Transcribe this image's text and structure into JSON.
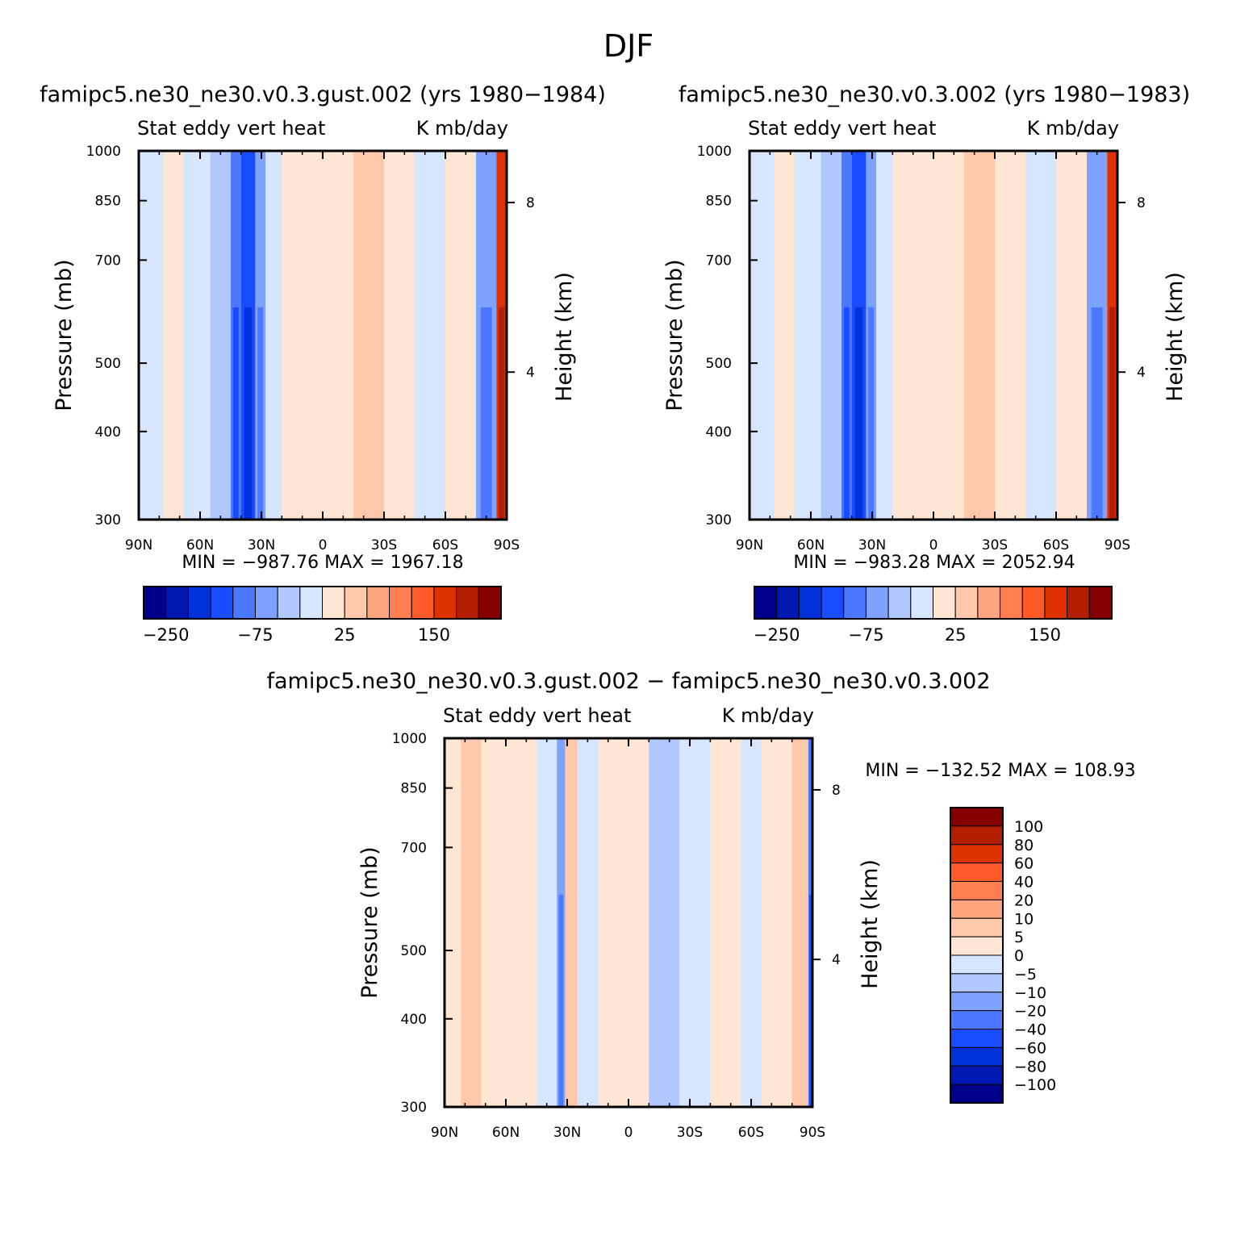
{
  "figure": {
    "title": "DJF"
  },
  "colors": {
    "abs": [
      "#00008b",
      "#0019b3",
      "#0032dc",
      "#1a4cff",
      "#4b78ff",
      "#80a2ff",
      "#b0c8ff",
      "#d6e6ff",
      "#ffe6d2",
      "#ffc8aa",
      "#ffa57d",
      "#ff7f50",
      "#ff5a28",
      "#e03200",
      "#b41e00",
      "#870000"
    ],
    "diff": [
      "#00008b",
      "#0019b3",
      "#0032dc",
      "#1a4cff",
      "#4b78ff",
      "#80a2ff",
      "#b0c8ff",
      "#d6e6ff",
      "#ffe6d2",
      "#ffc8aa",
      "#ffa57d",
      "#ff7f50",
      "#ff5a28",
      "#e03200",
      "#b41e00",
      "#870000"
    ]
  },
  "chart_data": [
    {
      "id": "panel-a",
      "type": "heatmap",
      "title": "famipc5.ne30_ne30.v0.3.gust.002 (yrs 1980−1984)",
      "left_label": "Stat eddy vert heat",
      "right_label": "K mb/day",
      "ylabel": "Pressure (mb)",
      "ylabel_right": "Height (km)",
      "x_ticks": [
        "90N",
        "60N",
        "30N",
        "0",
        "30S",
        "60S",
        "90S"
      ],
      "y_ticks": [
        "300",
        "400",
        "500",
        "700",
        "850",
        "1000"
      ],
      "y_ticks_right": [
        "8",
        "4"
      ],
      "ylim": [
        1000,
        300
      ],
      "min_max": "MIN = −987.76   MAX = 1967.18",
      "colorbar_labels": [
        "−250",
        "−75",
        "25",
        "150"
      ],
      "field": [
        {
          "lat": 90,
          "level": -1
        },
        {
          "lat": 78,
          "level": 1
        },
        {
          "lat": 68,
          "level": -1
        },
        {
          "lat": 55,
          "level": -2
        },
        {
          "lat": 45,
          "level": -4
        },
        {
          "lat": 40,
          "level": -5
        },
        {
          "lat": 33,
          "level": -3
        },
        {
          "lat": 28,
          "level": -1
        },
        {
          "lat": 20,
          "level": 1
        },
        {
          "lat": 5,
          "level": 1
        },
        {
          "lat": -15,
          "level": 2
        },
        {
          "lat": -30,
          "level": 1
        },
        {
          "lat": -45,
          "level": -1
        },
        {
          "lat": -60,
          "level": 1
        },
        {
          "lat": -75,
          "level": -3
        },
        {
          "lat": -85,
          "level": 6
        }
      ]
    },
    {
      "id": "panel-b",
      "type": "heatmap",
      "title": "famipc5.ne30_ne30.v0.3.002 (yrs 1980−1983)",
      "left_label": "Stat eddy vert heat",
      "right_label": "K mb/day",
      "ylabel": "Pressure (mb)",
      "ylabel_right": "Height (km)",
      "x_ticks": [
        "90N",
        "60N",
        "30N",
        "0",
        "30S",
        "60S",
        "90S"
      ],
      "y_ticks": [
        "300",
        "400",
        "500",
        "700",
        "850",
        "1000"
      ],
      "y_ticks_right": [
        "8",
        "4"
      ],
      "ylim": [
        1000,
        300
      ],
      "min_max": "MIN = −983.28   MAX = 2052.94",
      "colorbar_labels": [
        "−250",
        "−75",
        "25",
        "150"
      ],
      "field": [
        {
          "lat": 90,
          "level": -1
        },
        {
          "lat": 78,
          "level": 1
        },
        {
          "lat": 68,
          "level": -1
        },
        {
          "lat": 55,
          "level": -2
        },
        {
          "lat": 45,
          "level": -4
        },
        {
          "lat": 40,
          "level": -5
        },
        {
          "lat": 33,
          "level": -3
        },
        {
          "lat": 28,
          "level": -1
        },
        {
          "lat": 20,
          "level": 1
        },
        {
          "lat": 5,
          "level": 1
        },
        {
          "lat": -15,
          "level": 2
        },
        {
          "lat": -30,
          "level": 1
        },
        {
          "lat": -45,
          "level": -1
        },
        {
          "lat": -60,
          "level": 1
        },
        {
          "lat": -75,
          "level": -3
        },
        {
          "lat": -85,
          "level": 6
        }
      ]
    },
    {
      "id": "panel-c",
      "type": "heatmap",
      "title": "famipc5.ne30_ne30.v0.3.gust.002 − famipc5.ne30_ne30.v0.3.002",
      "left_label": "Stat eddy vert heat",
      "right_label": "K mb/day",
      "ylabel": "Pressure (mb)",
      "ylabel_right": "Height (km)",
      "x_ticks": [
        "90N",
        "60N",
        "30N",
        "0",
        "30S",
        "60S",
        "90S"
      ],
      "y_ticks": [
        "300",
        "400",
        "500",
        "700",
        "850",
        "1000"
      ],
      "y_ticks_right": [
        "8",
        "4"
      ],
      "ylim": [
        1000,
        300
      ],
      "min_max": "MIN = −132.52   MAX = 108.93",
      "colorbar_labels": [
        "100",
        "80",
        "60",
        "40",
        "20",
        "10",
        "5",
        "0",
        "−5",
        "−10",
        "−20",
        "−40",
        "−60",
        "−80",
        "−100"
      ],
      "field": [
        {
          "lat": 90,
          "level": 0
        },
        {
          "lat": 82,
          "level": 2
        },
        {
          "lat": 72,
          "level": 1
        },
        {
          "lat": 60,
          "level": 1
        },
        {
          "lat": 45,
          "level": -1
        },
        {
          "lat": 35,
          "level": -3
        },
        {
          "lat": 31,
          "level": 2
        },
        {
          "lat": 25,
          "level": -1
        },
        {
          "lat": 15,
          "level": 1
        },
        {
          "lat": 0,
          "level": 1
        },
        {
          "lat": -10,
          "level": -2
        },
        {
          "lat": -25,
          "level": -1
        },
        {
          "lat": -40,
          "level": 1
        },
        {
          "lat": -55,
          "level": -1
        },
        {
          "lat": -65,
          "level": 1
        },
        {
          "lat": -80,
          "level": 2
        },
        {
          "lat": -88,
          "level": -4
        }
      ]
    }
  ]
}
